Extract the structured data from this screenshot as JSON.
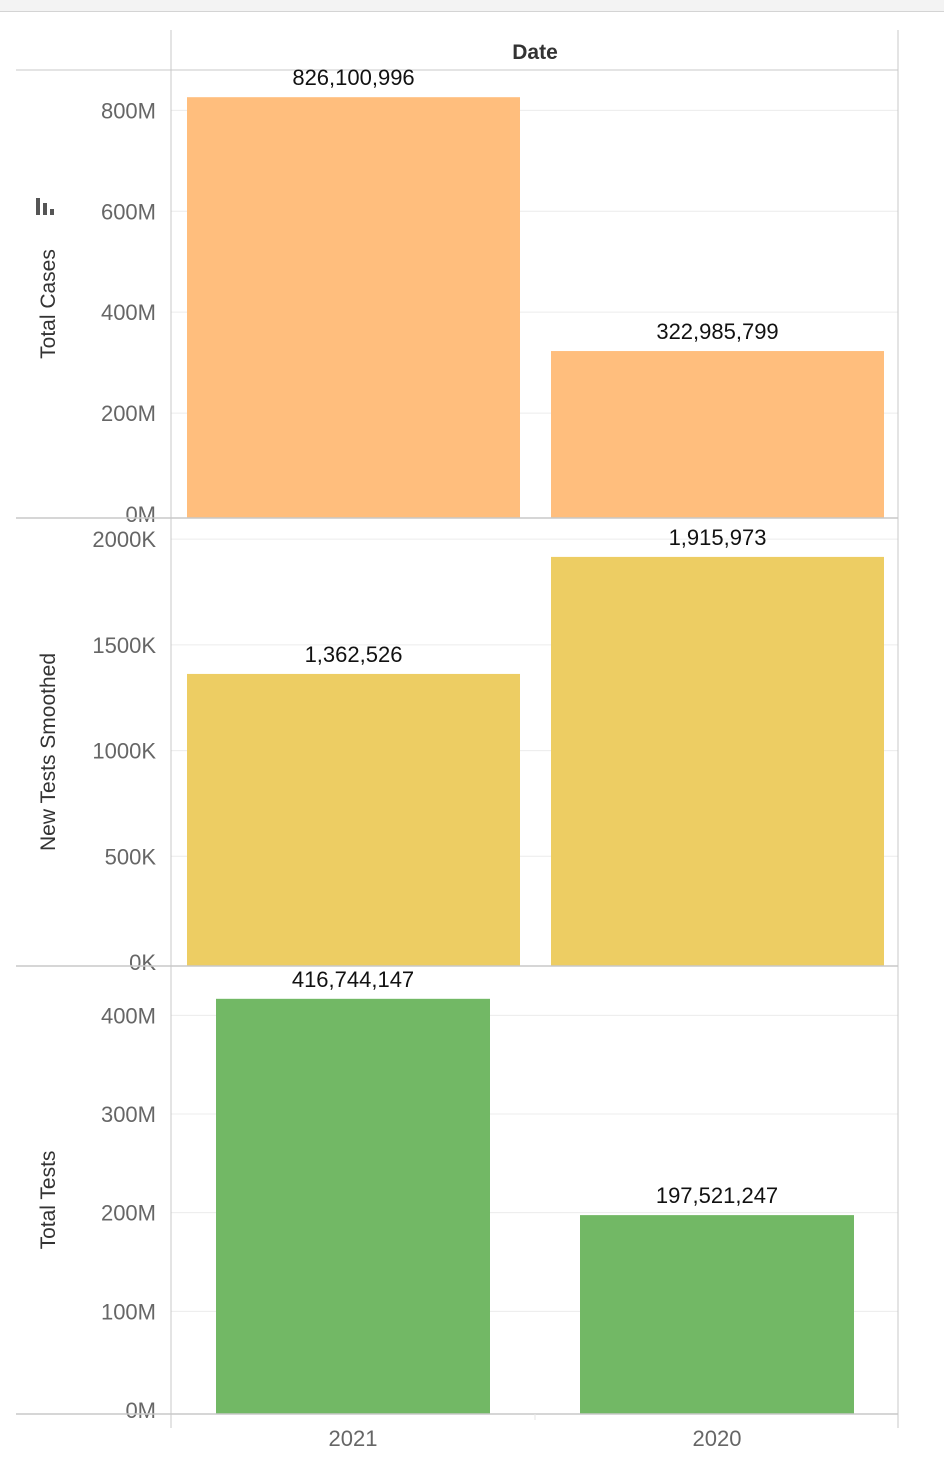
{
  "header": {
    "column_title": "Date"
  },
  "chart_data": {
    "type": "bar",
    "categories": [
      "2021",
      "2020"
    ],
    "panels": [
      {
        "ylabel": "Total Cases",
        "color": "#ffbe7d",
        "values": [
          826100996,
          322985799
        ],
        "value_labels": [
          "826,100,996",
          "322,985,799"
        ],
        "ylim": [
          0,
          880000000
        ],
        "ticks": [
          0,
          200000000,
          400000000,
          600000000,
          800000000
        ],
        "tick_labels": [
          "0M",
          "200M",
          "400M",
          "600M",
          "800M"
        ],
        "sort_icon": "sort-descending-icon"
      },
      {
        "ylabel": "New Tests Smoothed",
        "color": "#edcd63",
        "values": [
          1362526,
          1915973
        ],
        "value_labels": [
          "1,362,526",
          "1,915,973"
        ],
        "ylim": [
          0,
          2100000
        ],
        "ticks": [
          0,
          500000,
          1000000,
          1500000,
          2000000
        ],
        "tick_labels": [
          "0K",
          "500K",
          "1000K",
          "1500K",
          "2000K"
        ]
      },
      {
        "ylabel": "Total Tests",
        "color": "#72b865",
        "values": [
          416744147,
          197521247
        ],
        "value_labels": [
          "416,744,147",
          "197,521,247"
        ],
        "ylim": [
          0,
          450000000
        ],
        "ticks": [
          0,
          100000000,
          200000000,
          300000000,
          400000000
        ],
        "tick_labels": [
          "0M",
          "100M",
          "200M",
          "300M",
          "400M"
        ]
      }
    ],
    "grid": true,
    "legend": "none"
  }
}
